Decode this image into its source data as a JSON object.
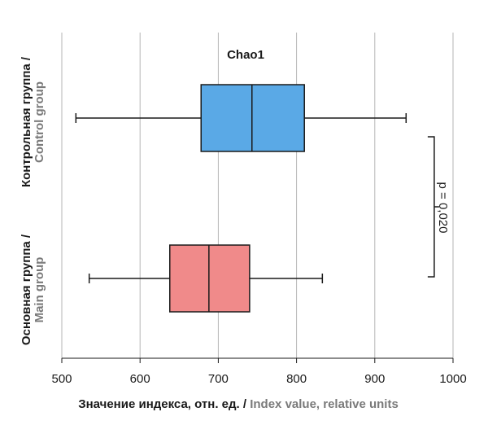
{
  "chart_data": {
    "type": "boxplot",
    "orientation": "horizontal",
    "title": "Chao1",
    "xlabel_ru": "Значение индекса, отн. ед.",
    "xlabel_sep": " / ",
    "xlabel_en": "Index value, relative units",
    "xlim": [
      500,
      1000
    ],
    "xticks": [
      500,
      600,
      700,
      800,
      900,
      1000
    ],
    "grid": true,
    "groups": [
      {
        "label_ru": "Контрольная группа /",
        "label_en": "Control group",
        "color": "#5aa9e6",
        "min": 518,
        "q1": 678,
        "median": 743,
        "q3": 810,
        "max": 940
      },
      {
        "label_ru": "Основная группа /",
        "label_en": "Main group",
        "color": "#f08a8a",
        "min": 535,
        "q1": 638,
        "median": 688,
        "q3": 740,
        "max": 833
      }
    ],
    "annotation": {
      "text": "p = 0,020",
      "bracket_at_x": 950
    }
  }
}
